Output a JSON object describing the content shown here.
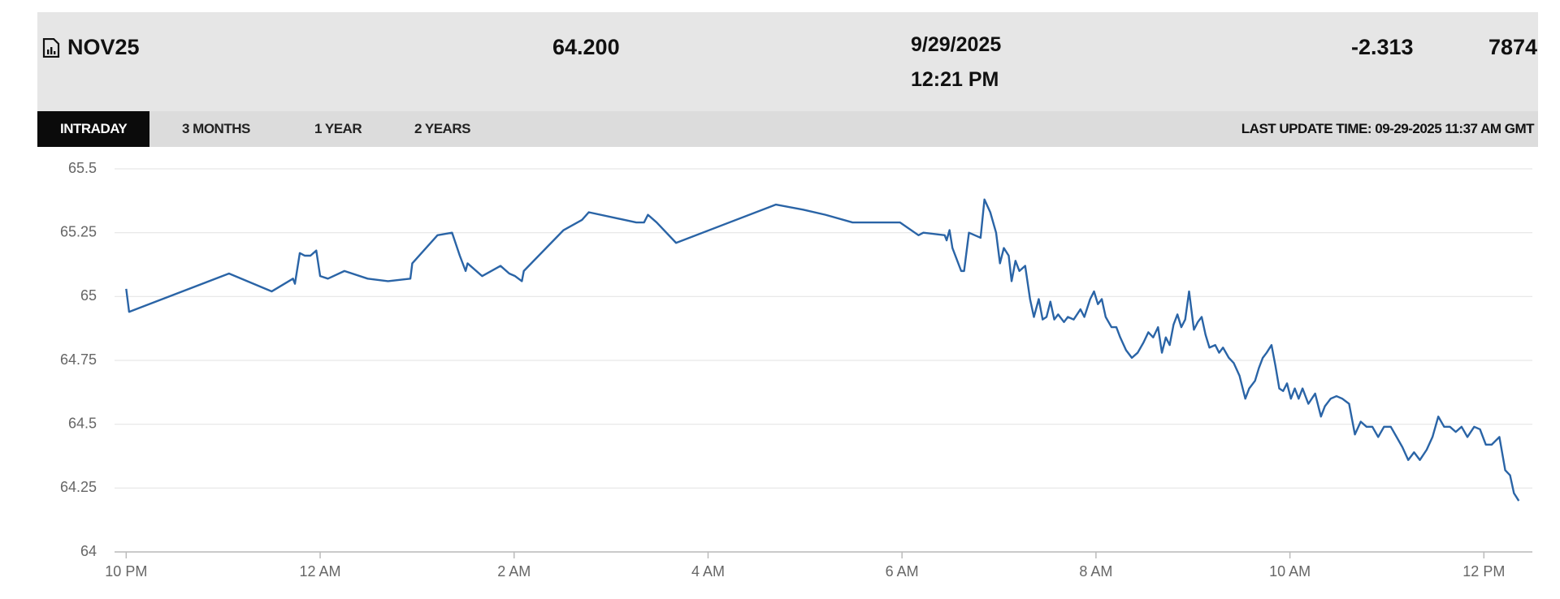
{
  "header": {
    "symbol": "NOV25",
    "price": "64.200",
    "date": "9/29/2025",
    "time": "12:21 PM",
    "change": "-2.313",
    "volume": "7874"
  },
  "tabs": [
    "INTRADAY",
    "3 MONTHS",
    "1 YEAR",
    "2 YEARS"
  ],
  "last_update": "LAST UPDATE TIME: 09-29-2025 11:37 AM GMT",
  "chart_data": {
    "type": "line",
    "color": "#2a64a6",
    "grid": true,
    "xlim": [
      -0.12,
      14.5
    ],
    "xticks": [
      {
        "value": 0,
        "label": "10 PM"
      },
      {
        "value": 2,
        "label": "12 AM"
      },
      {
        "value": 4,
        "label": "2 AM"
      },
      {
        "value": 6,
        "label": "4 AM"
      },
      {
        "value": 8,
        "label": "6 AM"
      },
      {
        "value": 10,
        "label": "8 AM"
      },
      {
        "value": 12,
        "label": "10 AM"
      },
      {
        "value": 14,
        "label": "12 PM"
      }
    ],
    "ylim": [
      64,
      65.5
    ],
    "yticks": [
      64,
      64.25,
      64.5,
      64.75,
      65,
      65.25,
      65.5
    ],
    "x": [
      0,
      0.03,
      1.06,
      1.5,
      1.72,
      1.74,
      1.79,
      1.84,
      1.9,
      1.96,
      2.0,
      2.08,
      2.25,
      2.49,
      2.7,
      2.93,
      2.95,
      3.21,
      3.36,
      3.44,
      3.5,
      3.52,
      3.67,
      3.86,
      3.95,
      4.01,
      4.08,
      4.1,
      4.51,
      4.7,
      4.77,
      5.26,
      5.34,
      5.38,
      5.47,
      5.67,
      6.7,
      6.98,
      7.21,
      7.49,
      7.98,
      8.17,
      8.22,
      8.44,
      8.46,
      8.49,
      8.52,
      8.61,
      8.64,
      8.69,
      8.81,
      8.85,
      8.91,
      8.97,
      9.01,
      9.05,
      9.1,
      9.13,
      9.17,
      9.21,
      9.27,
      9.32,
      9.36,
      9.41,
      9.45,
      9.49,
      9.53,
      9.57,
      9.61,
      9.67,
      9.71,
      9.77,
      9.84,
      9.88,
      9.94,
      9.98,
      10.02,
      10.06,
      10.1,
      10.16,
      10.21,
      10.25,
      10.31,
      10.37,
      10.43,
      10.49,
      10.54,
      10.59,
      10.64,
      10.68,
      10.72,
      10.76,
      10.8,
      10.84,
      10.88,
      10.92,
      10.96,
      11.01,
      11.05,
      11.09,
      11.13,
      11.17,
      11.23,
      11.27,
      11.31,
      11.37,
      11.42,
      11.48,
      11.54,
      11.58,
      11.64,
      11.68,
      11.72,
      11.76,
      11.81,
      11.85,
      11.89,
      11.93,
      11.97,
      12.01,
      12.05,
      12.09,
      12.13,
      12.19,
      12.26,
      12.32,
      12.36,
      12.42,
      12.48,
      12.54,
      12.61,
      12.67,
      12.73,
      12.79,
      12.85,
      12.91,
      12.97,
      13.04,
      13.1,
      13.16,
      13.22,
      13.28,
      13.34,
      13.41,
      13.47,
      13.53,
      13.59,
      13.65,
      13.71,
      13.77,
      13.83,
      13.9,
      13.96,
      14.02,
      14.08,
      14.16,
      14.22,
      14.27,
      14.31,
      14.36
    ],
    "values": [
      65.03,
      64.94,
      65.09,
      65.02,
      65.07,
      65.05,
      65.17,
      65.16,
      65.16,
      65.18,
      65.08,
      65.07,
      65.1,
      65.07,
      65.06,
      65.07,
      65.13,
      65.24,
      65.25,
      65.16,
      65.1,
      65.13,
      65.08,
      65.12,
      65.09,
      65.08,
      65.06,
      65.1,
      65.26,
      65.3,
      65.33,
      65.29,
      65.29,
      65.32,
      65.29,
      65.21,
      65.36,
      65.34,
      65.32,
      65.29,
      65.29,
      65.24,
      65.25,
      65.24,
      65.22,
      65.26,
      65.19,
      65.1,
      65.1,
      65.25,
      65.23,
      65.38,
      65.33,
      65.25,
      65.13,
      65.19,
      65.16,
      65.06,
      65.14,
      65.1,
      65.12,
      64.99,
      64.92,
      64.99,
      64.91,
      64.92,
      64.98,
      64.91,
      64.93,
      64.9,
      64.92,
      64.91,
      64.95,
      64.92,
      64.99,
      65.02,
      64.97,
      64.99,
      64.92,
      64.88,
      64.88,
      64.84,
      64.79,
      64.76,
      64.78,
      64.82,
      64.86,
      64.84,
      64.88,
      64.78,
      64.84,
      64.81,
      64.89,
      64.93,
      64.88,
      64.91,
      65.02,
      64.87,
      64.9,
      64.92,
      64.85,
      64.8,
      64.81,
      64.78,
      64.8,
      64.76,
      64.74,
      64.69,
      64.6,
      64.64,
      64.67,
      64.72,
      64.76,
      64.78,
      64.81,
      64.73,
      64.64,
      64.63,
      64.66,
      64.6,
      64.64,
      64.6,
      64.64,
      64.58,
      64.62,
      64.53,
      64.57,
      64.6,
      64.61,
      64.6,
      64.58,
      64.46,
      64.51,
      64.49,
      64.49,
      64.45,
      64.49,
      64.49,
      64.45,
      64.41,
      64.36,
      64.39,
      64.36,
      64.4,
      64.45,
      64.53,
      64.49,
      64.49,
      64.47,
      64.49,
      64.45,
      64.49,
      64.48,
      64.42,
      64.42,
      64.45,
      64.32,
      64.3,
      64.23,
      64.2
    ]
  }
}
